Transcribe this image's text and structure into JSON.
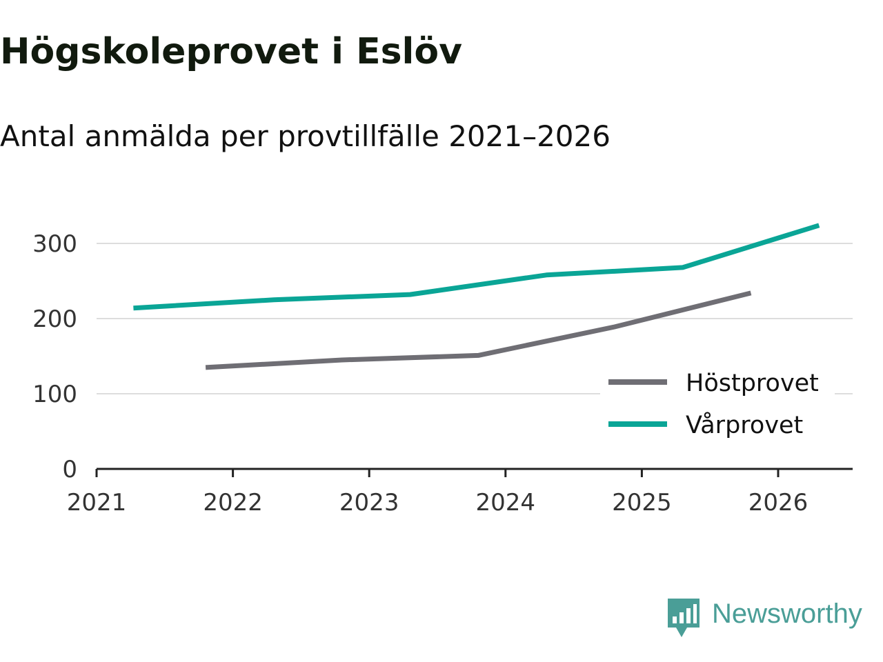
{
  "brand": {
    "name": "Newsworthy",
    "color": "#4a9e97",
    "icon": "bar-chart-speech-bubble-icon"
  },
  "chart_data": {
    "type": "line",
    "title": "Högskoleprovet i Eslöv",
    "subtitle": "Antal anmälda per provtillfälle 2021–2026",
    "xlabel": "",
    "ylabel": "",
    "xlim": [
      2021,
      2026.55
    ],
    "ylim": [
      0,
      300
    ],
    "x_ticks": [
      "2021",
      "2022",
      "2023",
      "2024",
      "2025",
      "2026"
    ],
    "y_ticks": [
      "0",
      "100",
      "200",
      "300"
    ],
    "grid": true,
    "legend_position": "bottom-right",
    "series": [
      {
        "name": "Höstprovet",
        "color": "#6f6e74",
        "x": [
          2021.8,
          2022.8,
          2023.8,
          2024.8,
          2025.8
        ],
        "values": [
          135,
          145,
          151,
          189,
          234
        ]
      },
      {
        "name": "Vårprovet",
        "color": "#0aa596",
        "x": [
          2021.27,
          2022.3,
          2023.3,
          2024.3,
          2025.3,
          2026.3
        ],
        "values": [
          214,
          225,
          232,
          258,
          268,
          324
        ]
      }
    ]
  }
}
